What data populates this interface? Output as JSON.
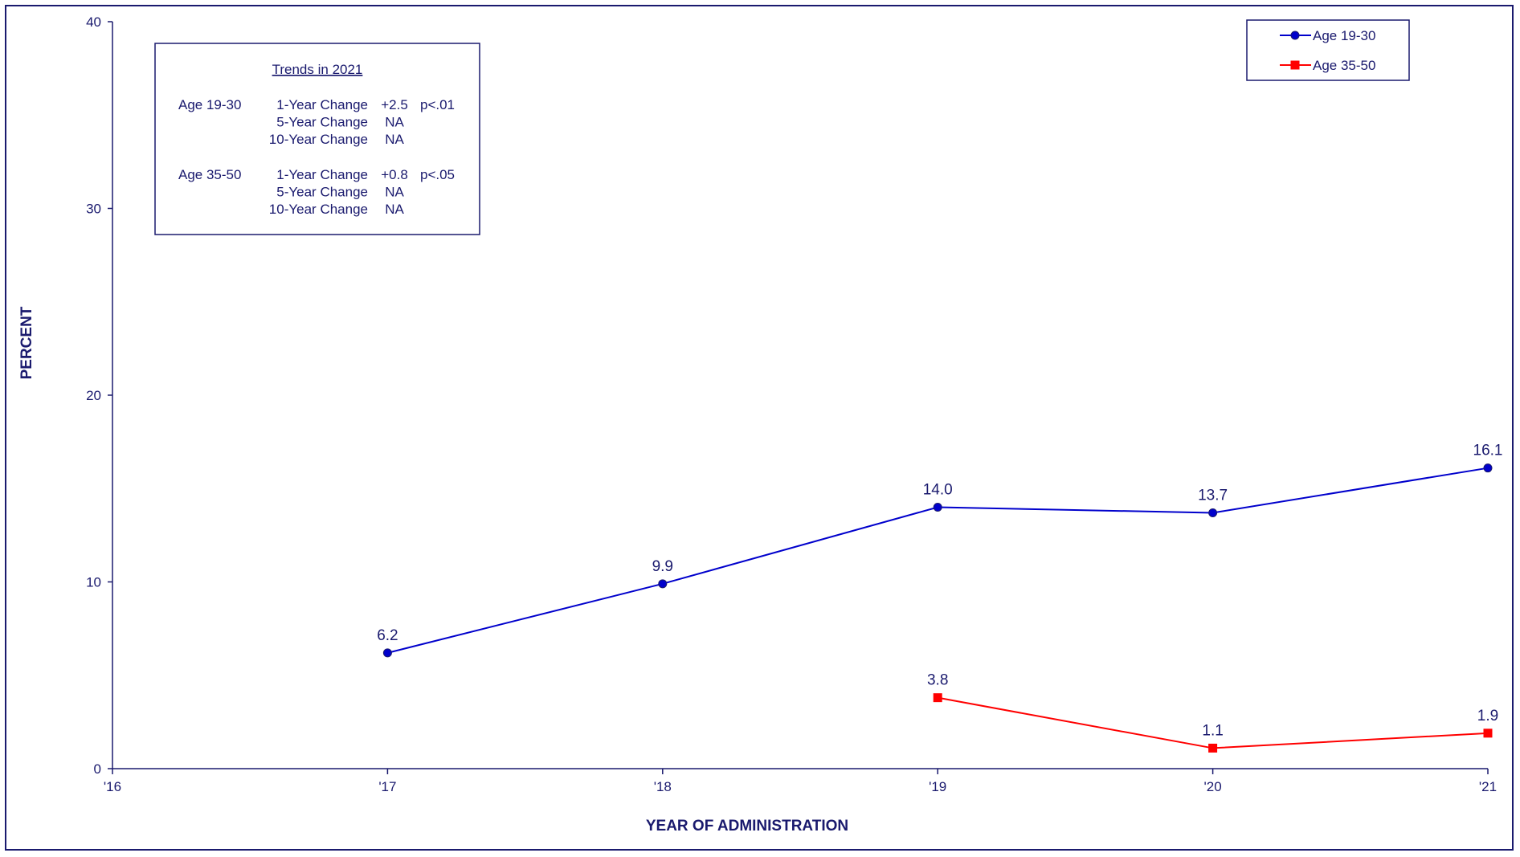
{
  "chart_data": {
    "type": "line",
    "xlabel": "YEAR OF ADMINISTRATION",
    "ylabel": "PERCENT",
    "ylim": [
      0,
      40
    ],
    "yticks": [
      0,
      10,
      20,
      30,
      40
    ],
    "categories": [
      "'16",
      "'17",
      "'18",
      "'19",
      "'20",
      "'21"
    ],
    "series": [
      {
        "name": "Age 19-30",
        "color": "#0000cc",
        "marker": "circle",
        "values": [
          null,
          6.2,
          9.9,
          14.0,
          13.7,
          16.1
        ],
        "labels": [
          "",
          "6.2",
          "9.9",
          "14.0",
          "13.7",
          "16.1"
        ]
      },
      {
        "name": "Age 35-50",
        "color": "#ff0000",
        "marker": "square",
        "values": [
          null,
          null,
          null,
          3.8,
          1.1,
          1.9
        ],
        "labels": [
          "",
          "",
          "",
          "3.8",
          "1.1",
          "1.9"
        ]
      }
    ],
    "legend_position": "top-right",
    "grid": false
  },
  "trends_panel": {
    "title": "Trends in 2021",
    "groups": [
      {
        "name": "Age 19-30",
        "rows": [
          {
            "label": "1-Year Change",
            "value": "+2.5",
            "sig": "p<.01"
          },
          {
            "label": "5-Year Change",
            "value": "NA",
            "sig": ""
          },
          {
            "label": "10-Year Change",
            "value": "NA",
            "sig": ""
          }
        ]
      },
      {
        "name": "Age 35-50",
        "rows": [
          {
            "label": "1-Year Change",
            "value": "+0.8",
            "sig": "p<.05"
          },
          {
            "label": "5-Year Change",
            "value": "NA",
            "sig": ""
          },
          {
            "label": "10-Year Change",
            "value": "NA",
            "sig": ""
          }
        ]
      }
    ]
  }
}
